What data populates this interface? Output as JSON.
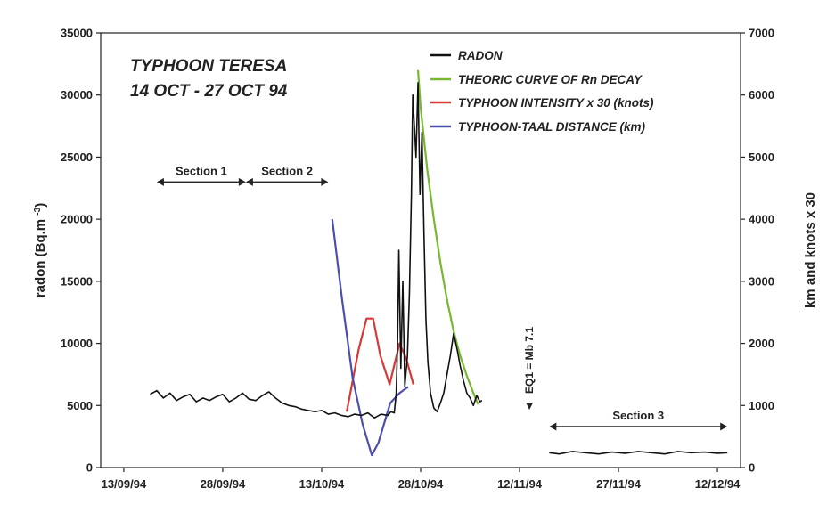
{
  "chart_data": {
    "type": "line",
    "title": [
      "TYPHOON TERESA",
      "14 OCT - 27 OCT 94"
    ],
    "ylabel": "radon (Bq.m-3)",
    "y2label": "km and knots x 30",
    "ylim": [
      0,
      35000
    ],
    "y2lim": [
      0,
      7000
    ],
    "yticks": [
      "0",
      "5000",
      "10000",
      "15000",
      "20000",
      "25000",
      "30000",
      "35000"
    ],
    "y2ticks": [
      "0",
      "1000",
      "2000",
      "3000",
      "4000",
      "5000",
      "6000",
      "7000"
    ],
    "xticks": [
      "13/09/94",
      "28/09/94",
      "13/10/94",
      "28/10/94",
      "12/11/94",
      "27/11/94",
      "12/12/94"
    ],
    "xtick_days": [
      0,
      15,
      30,
      45,
      60,
      75,
      90
    ],
    "xlim_days": [
      -3.5,
      93.5
    ],
    "x_reference_date": "13/09/94",
    "grid": false,
    "legend_position": "top-right",
    "series": [
      {
        "name": "RADON",
        "color": "#111111",
        "axis": "left",
        "segments": [
          [
            [
              4,
              5900
            ],
            [
              5,
              6200
            ],
            [
              6,
              5600
            ],
            [
              7,
              6000
            ],
            [
              8,
              5400
            ],
            [
              9,
              5700
            ],
            [
              10,
              5900
            ],
            [
              11,
              5300
            ],
            [
              12,
              5600
            ],
            [
              13,
              5400
            ],
            [
              14,
              5700
            ],
            [
              15,
              5900
            ],
            [
              16,
              5300
            ],
            [
              17,
              5600
            ],
            [
              18,
              6000
            ],
            [
              19,
              5500
            ],
            [
              20,
              5400
            ],
            [
              21,
              5800
            ],
            [
              22,
              6100
            ],
            [
              23,
              5600
            ],
            [
              24,
              5200
            ],
            [
              25,
              5000
            ],
            [
              26,
              4900
            ],
            [
              27,
              4700
            ],
            [
              28,
              4600
            ],
            [
              29,
              4500
            ],
            [
              30,
              4600
            ],
            [
              31,
              4300
            ],
            [
              32,
              4400
            ],
            [
              33,
              4200
            ],
            [
              34,
              4100
            ],
            [
              35,
              4300
            ],
            [
              36,
              4200
            ],
            [
              37,
              4400
            ],
            [
              38,
              4000
            ],
            [
              39,
              4300
            ],
            [
              40,
              4200
            ],
            [
              40.5,
              4500
            ],
            [
              41,
              4400
            ],
            [
              41.3,
              6000
            ],
            [
              41.5,
              10000
            ],
            [
              41.7,
              17500
            ],
            [
              42,
              8000
            ],
            [
              42.3,
              15000
            ],
            [
              42.6,
              6500
            ],
            [
              43,
              9000
            ],
            [
              43.3,
              14000
            ],
            [
              43.6,
              22000
            ],
            [
              43.8,
              30000
            ],
            [
              44,
              28000
            ],
            [
              44.3,
              25000
            ],
            [
              44.6,
              31000
            ],
            [
              44.9,
              22000
            ],
            [
              45.2,
              27000
            ],
            [
              45.5,
              19000
            ],
            [
              45.8,
              12000
            ],
            [
              46.1,
              8500
            ],
            [
              46.5,
              6000
            ],
            [
              47,
              4800
            ],
            [
              47.5,
              4500
            ],
            [
              48,
              5200
            ],
            [
              48.5,
              6000
            ],
            [
              49,
              7500
            ],
            [
              49.5,
              9000
            ],
            [
              50,
              10800
            ],
            [
              50.5,
              9600
            ],
            [
              51,
              8200
            ],
            [
              51.5,
              7000
            ],
            [
              52,
              6000
            ],
            [
              52.5,
              5600
            ],
            [
              53,
              5000
            ],
            [
              53.5,
              5800
            ],
            [
              54,
              5300
            ],
            [
              54.3,
              5400
            ]
          ],
          [
            [
              64.5,
              1200
            ],
            [
              66,
              1100
            ],
            [
              68,
              1300
            ],
            [
              70,
              1200
            ],
            [
              72,
              1100
            ],
            [
              74,
              1250
            ],
            [
              76,
              1150
            ],
            [
              78,
              1300
            ],
            [
              80,
              1200
            ],
            [
              82,
              1100
            ],
            [
              84,
              1300
            ],
            [
              86,
              1200
            ],
            [
              88,
              1250
            ],
            [
              90,
              1150
            ],
            [
              91.5,
              1200
            ]
          ]
        ]
      },
      {
        "name": "THEORIC CURVE OF Rn DECAY",
        "color": "#77b82e",
        "axis": "left",
        "segments": [
          [
            [
              44.6,
              32000
            ],
            [
              45,
              29000
            ],
            [
              45.5,
              26500
            ],
            [
              46,
              24000
            ],
            [
              47,
              20000
            ],
            [
              48,
              16500
            ],
            [
              49,
              13500
            ],
            [
              50,
              11000
            ],
            [
              51,
              9000
            ],
            [
              52,
              7400
            ],
            [
              53,
              6000
            ],
            [
              53.7,
              5100
            ]
          ]
        ]
      },
      {
        "name": "TYPHOON INTENSITY  x 30 (knots)",
        "color": "#d63a36",
        "axis": "left",
        "segments": [
          [
            [
              33.8,
              4500
            ],
            [
              35.6,
              9500
            ],
            [
              36.8,
              12000
            ],
            [
              37.8,
              12000
            ],
            [
              38.9,
              9000
            ],
            [
              40.3,
              6700
            ],
            [
              41.8,
              10000
            ],
            [
              42.8,
              8800
            ],
            [
              43.9,
              6700
            ]
          ]
        ]
      },
      {
        "name": "TYPHOON-TAAL DISTANCE (km)",
        "color": "#4d4faf",
        "axis": "left",
        "segments": [
          [
            [
              31.6,
              20000
            ],
            [
              33.1,
              13500
            ],
            [
              34.7,
              7200
            ],
            [
              36.2,
              3500
            ],
            [
              37.6,
              1000
            ],
            [
              38.6,
              2000
            ],
            [
              40.4,
              5200
            ],
            [
              41.8,
              6000
            ],
            [
              43.1,
              6500
            ]
          ]
        ]
      }
    ],
    "legend": [
      "RADON",
      "THEORIC CURVE OF Rn DECAY",
      "TYPHOON INTENSITY  x 30 (knots)",
      "TYPHOON-TAAL DISTANCE (km)"
    ],
    "sections": [
      {
        "label": "Section 1",
        "from_day": 5,
        "to_day": 18.5,
        "y": 23000
      },
      {
        "label": "Section 2",
        "from_day": 18.5,
        "to_day": 31,
        "y": 23000
      },
      {
        "label": "Section 3",
        "from_day": 64.5,
        "to_day": 91.5,
        "y": 3300
      }
    ],
    "annotation": {
      "label": "EQ1 = Mb 7.1",
      "day": 61.5
    }
  }
}
